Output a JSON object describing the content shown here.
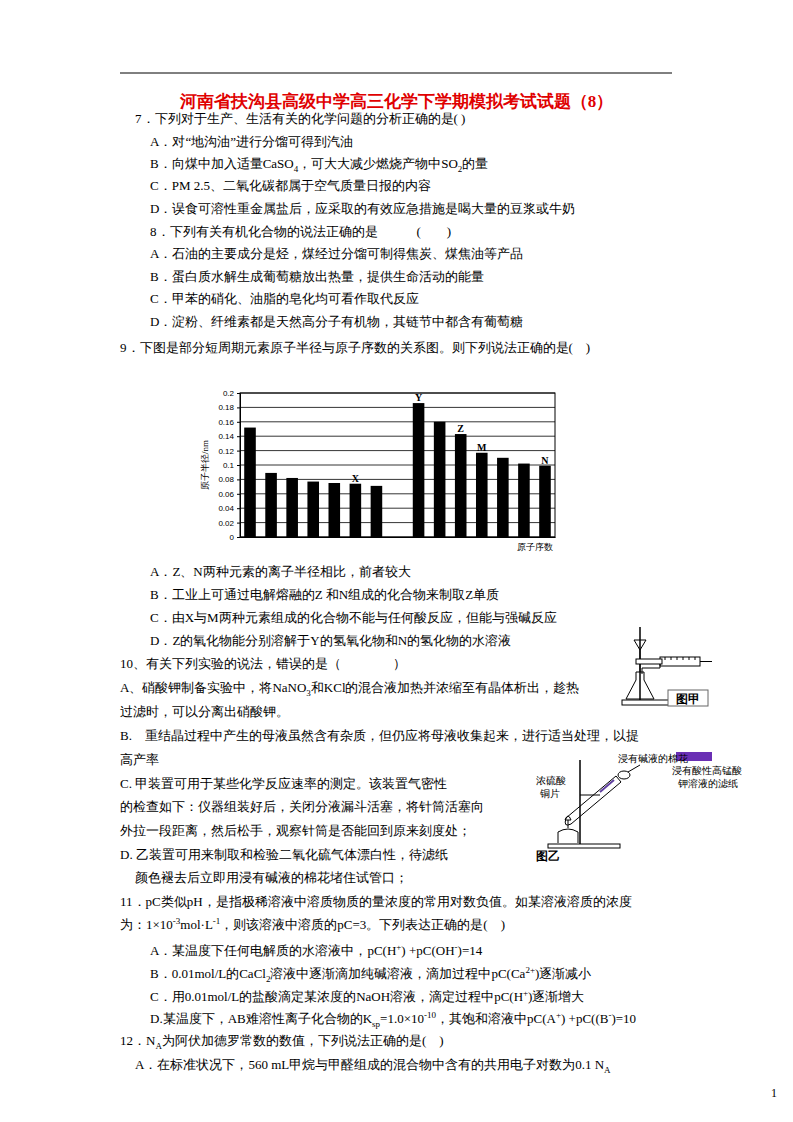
{
  "header": {
    "title": "河南省扶沟县高级中学高三化学下学期模拟考试试题（8）"
  },
  "lines": [
    [
      "7．下列对于生产、生活有关的化学问题的分析正确的是( )"
    ],
    [
      "A．对“地沟油”进行分馏可得到汽油"
    ],
    [
      "B．向煤中加入适量CaSO",
      {
        "sub": "4"
      },
      "，可大大减少燃烧产物中SO",
      {
        "sub": "2"
      },
      "的量"
    ],
    [
      "C．PM 2.5、二氧化碳都属于空气质量日报的内容"
    ],
    [
      "D．误食可溶性重金属盐后，应采取的有效应急措施是喝大量的豆浆或牛奶"
    ],
    [
      "8．下列有关有机化合物的说法正确的是　　　(　　)"
    ],
    [
      "A．石油的主要成分是烃，煤经过分馏可制得焦炭、煤焦油等产品"
    ],
    [
      "B．蛋白质水解生成葡萄糖放出热量，提供生命活动的能量"
    ],
    [
      "C．甲苯的硝化、油脂的皂化均可看作取代反应"
    ],
    [
      "D．淀粉、纤维素都是天然高分子有机物，其链节中都含有葡萄糖"
    ],
    [
      "9．下图是部分短周期元素原子半径与原子序数的关系图。则下列说法正确的是(　)"
    ],
    [
      "A．Z、N两种元素的离子半径相比，前者较大"
    ],
    [
      "B．工业上可通过电解熔融的Z 和N组成的化合物来制取Z单质"
    ],
    [
      "C．由X与M两种元素组成的化合物不能与任何酸反应，但能与强碱反应"
    ],
    [
      "D．Z的氧化物能分别溶解于Y的氢氧化物和N的氢化物的水溶液"
    ],
    [
      "10、有关下列实验的说法，错误的是（　　　　）"
    ],
    [
      "A、硝酸钾制备实验中，将NaNO",
      {
        "sub": "3"
      },
      "和KCl的混合液加热并浓缩至有晶体析出，趁热"
    ],
    [
      "过滤时，可以分离出硝酸钾。"
    ],
    [
      "B.　重结晶过程中产生的母液虽然含有杂质，但仍应将母液收集起来，进行适当处理，以提"
    ],
    [
      "高产率"
    ],
    [
      "C. 甲装置可用于某些化学反应速率的测定。该装置气密性"
    ],
    [
      "的检查如下：仪器组装好后，关闭分液漏斗活塞，将针筒活塞向"
    ],
    [
      "外拉一段距离，然后松手，观察针筒是否能回到原来刻度处；"
    ],
    [
      "D. 乙装置可用来制取和检验二氧化硫气体漂白性，待滤纸"
    ],
    [
      "颜色褪去后立即用浸有碱液的棉花堵住试管口；"
    ],
    [
      "11．pC类似pH，是指极稀溶液中溶质物质的量浓度的常用对数负值。如某溶液溶质的浓度"
    ],
    [
      "为：1×10",
      {
        "sup": "-3"
      },
      "mol·L",
      {
        "sup": "-1"
      },
      "，则该溶液中溶质的pC=3。下列表达正确的是(　)"
    ],
    [
      "A．某温度下任何电解质的水溶液中，pC(H",
      {
        "sup": "+"
      },
      ") +pC(OH",
      {
        "sup": "-"
      },
      ")=14"
    ],
    [
      "B．0.01mol/L的CaCl",
      {
        "sub": "2"
      },
      "溶液中逐渐滴加纯碱溶液，滴加过程中pC(Ca",
      {
        "sup": "2+"
      },
      ")逐渐减小"
    ],
    [
      "C．用0.01mol/L的盐酸滴定某浓度的NaOH溶液，滴定过程中pC(H",
      {
        "sup": "+"
      },
      ")逐渐增大"
    ],
    [
      "D.某温度下，AB难溶性离子化合物的K",
      {
        "sub": "sp"
      },
      "=1.0×10",
      {
        "sup": "-10"
      },
      "，其饱和溶液中pC(A",
      {
        "sup": "+"
      },
      ") +pC((B",
      {
        "sup": "-"
      },
      ")=10"
    ],
    [
      "12．N",
      {
        "sub": "A"
      },
      "为阿伏加德罗常数的数值，下列说法正确的是(　)"
    ],
    [
      "A．在标准状况下，560 mL甲烷与甲醛组成的混合物中含有的共用电子对数为0.1 N",
      {
        "sub": "A"
      }
    ]
  ],
  "chart_data": {
    "type": "bar",
    "y_label": "原子半径/nm",
    "x_label": "原子序数",
    "categories": [
      null,
      null,
      null,
      null,
      null,
      null,
      null,
      null,
      null,
      null,
      null,
      null,
      null,
      null,
      null
    ],
    "values": [
      0.152,
      0.089,
      0.082,
      0.077,
      0.075,
      0.074,
      0.071,
      null,
      0.186,
      0.16,
      0.143,
      0.117,
      0.11,
      0.102,
      0.099
    ],
    "point_labels": [
      null,
      null,
      null,
      null,
      null,
      "X",
      null,
      null,
      "Y",
      null,
      "Z",
      "M",
      null,
      null,
      "N"
    ],
    "ylim": [
      0,
      0.2
    ],
    "yticks": [
      0,
      0.02,
      0.04,
      0.06,
      0.08,
      0.1,
      0.12,
      0.14,
      0.16,
      0.18,
      0.2
    ],
    "grid": true,
    "tick_labels": "y",
    "color": "#000000"
  },
  "figures": {
    "jia": {
      "caption": "图甲"
    },
    "yi": {
      "caption": "图乙",
      "labels": [
        "浸有碱液的棉花",
        "浓硫酸",
        "铜片",
        "浸有酸性高锰酸",
        "钾溶液的滤纸"
      ]
    }
  },
  "footer": {
    "page": "1"
  }
}
